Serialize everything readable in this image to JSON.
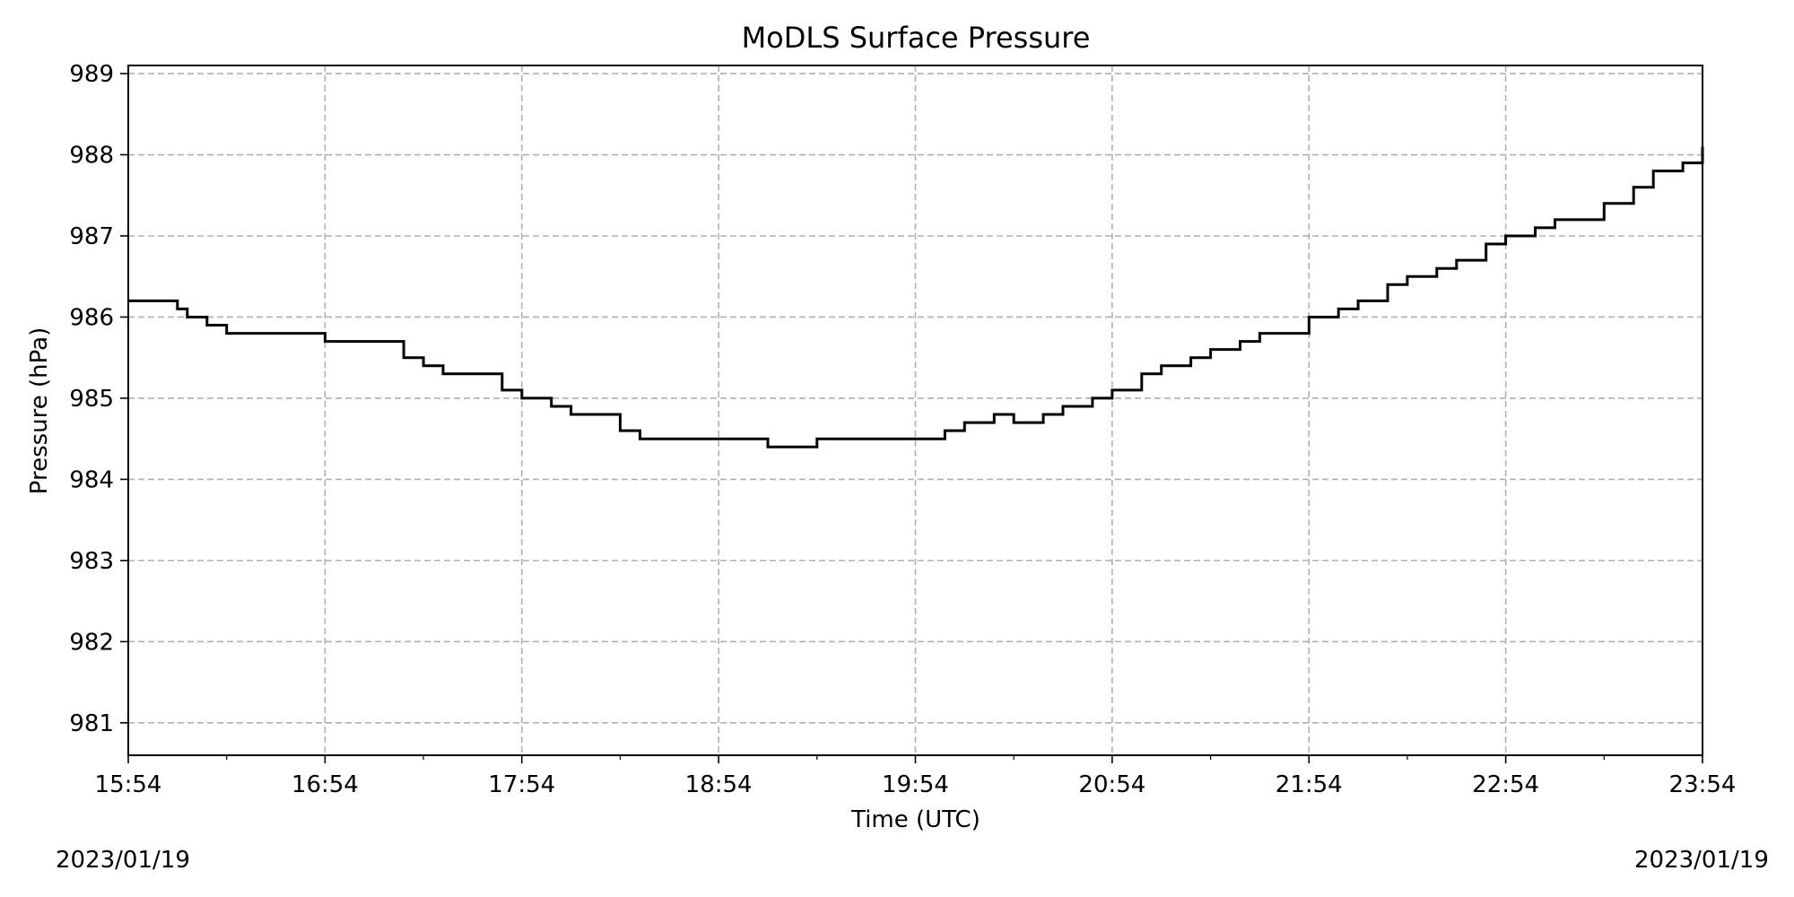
{
  "chart_data": {
    "type": "line",
    "title": "MoDLS Surface Pressure",
    "xlabel": "Time (UTC)",
    "ylabel": "Pressure (hPa)",
    "x_tick_labels": [
      "15:54",
      "16:54",
      "17:54",
      "18:54",
      "19:54",
      "20:54",
      "21:54",
      "22:54",
      "23:54"
    ],
    "y_tick_labels": [
      "981",
      "982",
      "983",
      "984",
      "985",
      "986",
      "987",
      "988",
      "989"
    ],
    "x_unit": "hours",
    "xlim": [
      0,
      8
    ],
    "ylim": [
      980.6,
      989.1
    ],
    "grid": true,
    "line_color": "#000000",
    "grid_color": "#b0b0b0",
    "date_left": "2023/01/19",
    "date_right": "2023/01/19",
    "series": [
      {
        "x": [
          0,
          0.25,
          0.3,
          0.4,
          0.5,
          0.6,
          0.75,
          1,
          1.2,
          1.4,
          1.5,
          1.6,
          1.75,
          1.9,
          2,
          2.15,
          2.25,
          2.4,
          2.5,
          2.6,
          2.75,
          2.9,
          3,
          3.25,
          3.5,
          3.75,
          4,
          4.15,
          4.25,
          4.4,
          4.5,
          4.65,
          4.75,
          4.9,
          5,
          5.15,
          5.25,
          5.4,
          5.5,
          5.65,
          5.75,
          6,
          6.15,
          6.25,
          6.4,
          6.5,
          6.65,
          6.75,
          6.9,
          7,
          7.15,
          7.25,
          7.5,
          7.65,
          7.75,
          7.9,
          8
        ],
        "y": [
          986.2,
          986.1,
          986.0,
          985.9,
          985.8,
          985.8,
          985.8,
          985.7,
          985.7,
          985.5,
          985.4,
          985.3,
          985.3,
          985.1,
          985.0,
          984.9,
          984.8,
          984.8,
          984.6,
          984.5,
          984.5,
          984.5,
          984.5,
          984.4,
          984.5,
          984.5,
          984.5,
          984.6,
          984.7,
          984.8,
          984.7,
          984.8,
          984.9,
          985.0,
          985.1,
          985.3,
          985.4,
          985.5,
          985.6,
          985.7,
          985.8,
          986.0,
          986.1,
          986.2,
          986.4,
          986.5,
          986.6,
          986.7,
          986.9,
          987.0,
          987.1,
          987.2,
          987.4,
          987.6,
          987.8,
          987.9,
          988.1
        ]
      }
    ]
  }
}
